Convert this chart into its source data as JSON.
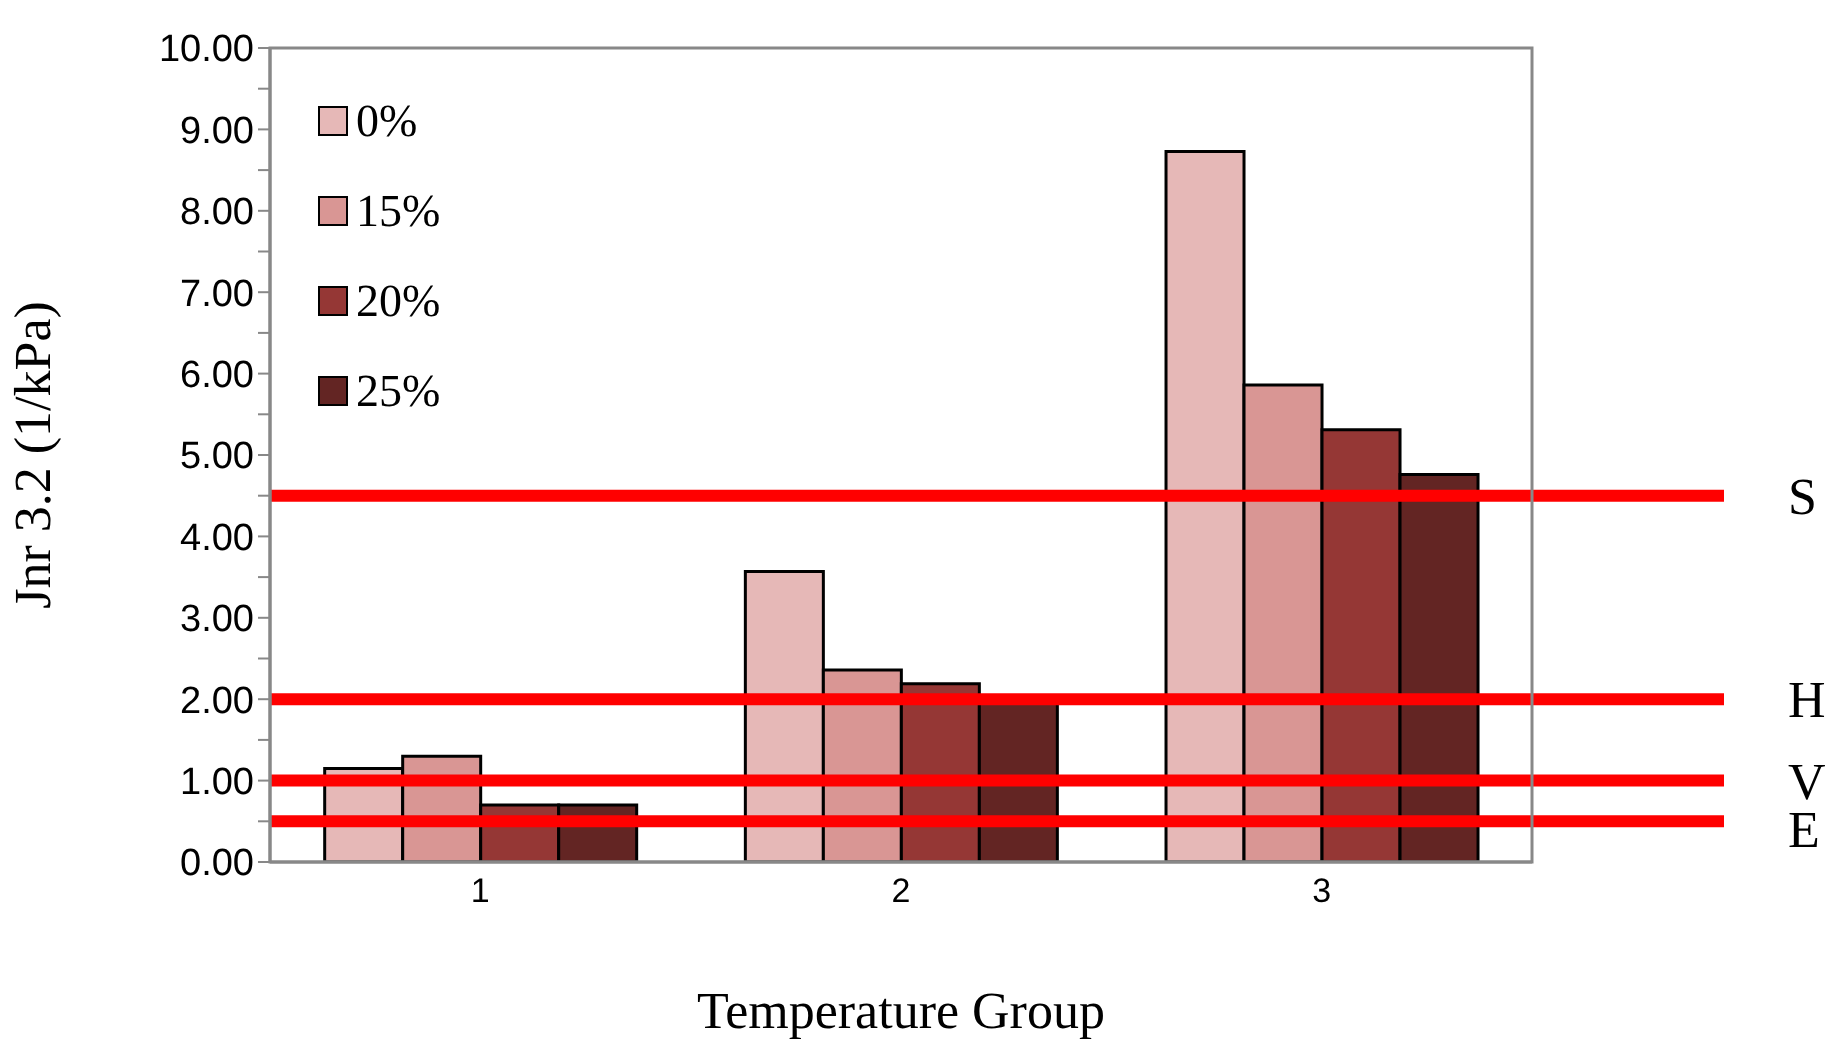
{
  "chart_data": {
    "type": "bar",
    "xlabel": "Temperature Group",
    "ylabel": "Jnr 3.2 (1/kPa)",
    "categories": [
      "1",
      "2",
      "3"
    ],
    "series": [
      {
        "name": "0%",
        "color": "#e6b8b7",
        "values": [
          1.15,
          3.57,
          8.73
        ]
      },
      {
        "name": "15%",
        "color": "#d99694",
        "values": [
          1.3,
          2.36,
          5.86
        ]
      },
      {
        "name": "20%",
        "color": "#953735",
        "values": [
          0.7,
          2.19,
          5.31
        ]
      },
      {
        "name": "25%",
        "color": "#632523",
        "values": [
          0.7,
          2.0,
          4.76
        ]
      }
    ],
    "ylim": [
      0,
      10
    ],
    "yticks": [
      {
        "value": 0,
        "label": "0.00"
      },
      {
        "value": 0.5,
        "label": null
      },
      {
        "value": 1,
        "label": "1.00"
      },
      {
        "value": 1.5,
        "label": null
      },
      {
        "value": 2,
        "label": "2.00"
      },
      {
        "value": 2.5,
        "label": null
      },
      {
        "value": 3,
        "label": "3.00"
      },
      {
        "value": 3.5,
        "label": null
      },
      {
        "value": 4,
        "label": "4.00"
      },
      {
        "value": 4.5,
        "label": null
      },
      {
        "value": 5,
        "label": "5.00"
      },
      {
        "value": 5.5,
        "label": null
      },
      {
        "value": 6,
        "label": "6.00"
      },
      {
        "value": 6.5,
        "label": null
      },
      {
        "value": 7,
        "label": "7.00"
      },
      {
        "value": 7.5,
        "label": null
      },
      {
        "value": 8,
        "label": "8.00"
      },
      {
        "value": 8.5,
        "label": null
      },
      {
        "value": 9,
        "label": "9.00"
      },
      {
        "value": 9.5,
        "label": null
      },
      {
        "value": 10,
        "label": "10.00"
      }
    ],
    "ref_lines": [
      {
        "axis": "y",
        "value": 4.5,
        "label": "S",
        "color": "#ff0000"
      },
      {
        "axis": "y",
        "value": 2,
        "label": "H",
        "color": "#ff0000"
      },
      {
        "axis": "y",
        "value": 1,
        "label": "V",
        "color": "#ff0000"
      },
      {
        "axis": "y",
        "value": 0.5,
        "label": "E",
        "color": "#ff0000"
      }
    ],
    "grid": false,
    "legend": "top left"
  }
}
